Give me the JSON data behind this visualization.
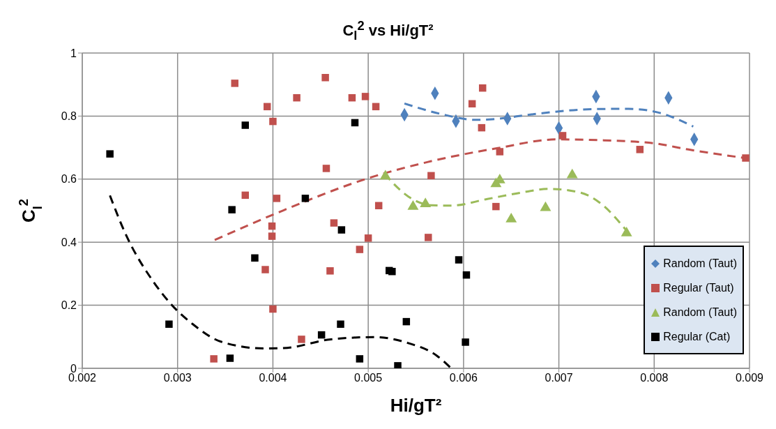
{
  "chart_data": {
    "type": "scatter",
    "title": "C$_{l}$$^{2}$  vs Hi/gT²",
    "xlabel": "Hi/gT²",
    "ylabel": "C$_{l}$$^{2}$",
    "xlim": [
      0.002,
      0.009
    ],
    "xticks": [
      0.002,
      0.003,
      0.004,
      0.005,
      0.006,
      0.007,
      0.008,
      0.009
    ],
    "ylim": [
      0,
      1
    ],
    "yticks": [
      0,
      0.2,
      0.4,
      0.6,
      0.8,
      1
    ],
    "grid": true,
    "legend": "bottom right",
    "series": [
      {
        "name": "Random (Taut)",
        "color": "#4f81bd",
        "marker": "diamond",
        "x": [
          0.00538,
          0.0057,
          0.00592,
          0.00646,
          0.007,
          0.00739,
          0.0074,
          0.00815,
          0.00842
        ],
        "values": [
          0.804,
          0.872,
          0.784,
          0.792,
          0.762,
          0.862,
          0.792,
          0.858,
          0.726
        ]
      },
      {
        "name": "Regular (Taut)",
        "color": "#c0504d",
        "marker": "square",
        "x": [
          0.0036,
          0.00394,
          0.004,
          0.00425,
          0.00371,
          0.00404,
          0.00399,
          0.00399,
          0.00392,
          0.004,
          0.00338,
          0.0043,
          0.00455,
          0.00483,
          0.00497,
          0.00508,
          0.00456,
          0.00464,
          0.005,
          0.00491,
          0.0046,
          0.00511,
          0.00566,
          0.00563,
          0.00609,
          0.0062,
          0.00619,
          0.00634,
          0.00638,
          0.00704,
          0.00785,
          0.00896
        ],
        "values": [
          0.904,
          0.83,
          0.783,
          0.858,
          0.549,
          0.539,
          0.451,
          0.419,
          0.313,
          0.188,
          0.03,
          0.092,
          0.922,
          0.858,
          0.862,
          0.83,
          0.634,
          0.461,
          0.413,
          0.377,
          0.309,
          0.516,
          0.611,
          0.415,
          0.839,
          0.889,
          0.763,
          0.513,
          0.687,
          0.738,
          0.694,
          0.667
        ]
      },
      {
        "name": "Random (Taut)",
        "color": "#9bbb59",
        "marker": "triangle",
        "x": [
          0.00518,
          0.00547,
          0.0056,
          0.00634,
          0.00638,
          0.0065,
          0.00686,
          0.00714,
          0.00771
        ],
        "values": [
          0.609,
          0.513,
          0.521,
          0.585,
          0.597,
          0.473,
          0.509,
          0.613,
          0.429
        ]
      },
      {
        "name": "Regular (Cat)",
        "color": "#000000",
        "marker": "square",
        "x": [
          0.00229,
          0.00291,
          0.00371,
          0.00357,
          0.00381,
          0.00355,
          0.00434,
          0.00486,
          0.00472,
          0.00522,
          0.00525,
          0.00595,
          0.00603,
          0.00471,
          0.00451,
          0.0054,
          0.00491,
          0.00531,
          0.00602
        ],
        "values": [
          0.68,
          0.14,
          0.771,
          0.503,
          0.35,
          0.032,
          0.539,
          0.779,
          0.439,
          0.31,
          0.307,
          0.344,
          0.296,
          0.14,
          0.106,
          0.148,
          0.03,
          0.008,
          0.083
        ]
      },
      {
        "type": "line",
        "color": "#4f81bd",
        "line_style": "dashed",
        "marker": "none",
        "x": [
          0.00538,
          0.00577,
          0.00613,
          0.0063,
          0.00673,
          0.00736,
          0.00773,
          0.00806,
          0.00841
        ],
        "values": [
          0.84,
          0.806,
          0.788,
          0.79,
          0.806,
          0.822,
          0.823,
          0.81,
          0.767
        ]
      },
      {
        "type": "line",
        "color": "#c0504d",
        "line_style": "dashed",
        "marker": "none",
        "x": [
          0.00339,
          0.00411,
          0.005,
          0.00562,
          0.00635,
          0.00698,
          0.00748,
          0.00799,
          0.00836,
          0.00895
        ],
        "values": [
          0.407,
          0.501,
          0.603,
          0.654,
          0.698,
          0.726,
          0.723,
          0.714,
          0.694,
          0.667
        ]
      },
      {
        "type": "line",
        "color": "#9bbb59",
        "line_style": "dashed",
        "marker": "none",
        "x": [
          0.00517,
          0.00542,
          0.00567,
          0.00587,
          0.00625,
          0.0066,
          0.0069,
          0.00723,
          0.00743,
          0.00773
        ],
        "values": [
          0.617,
          0.545,
          0.517,
          0.516,
          0.537,
          0.557,
          0.569,
          0.557,
          0.525,
          0.429
        ]
      },
      {
        "type": "line",
        "color": "#000000",
        "line_style": "dashed",
        "marker": "none",
        "x": [
          0.00229,
          0.00245,
          0.00275,
          0.00293,
          0.00316,
          0.00346,
          0.00391,
          0.00411,
          0.00461,
          0.00507,
          0.00542,
          0.00572,
          0.00587
        ],
        "values": [
          0.548,
          0.429,
          0.273,
          0.204,
          0.14,
          0.084,
          0.063,
          0.064,
          0.092,
          0.099,
          0.08,
          0.04,
          0
        ]
      }
    ]
  }
}
